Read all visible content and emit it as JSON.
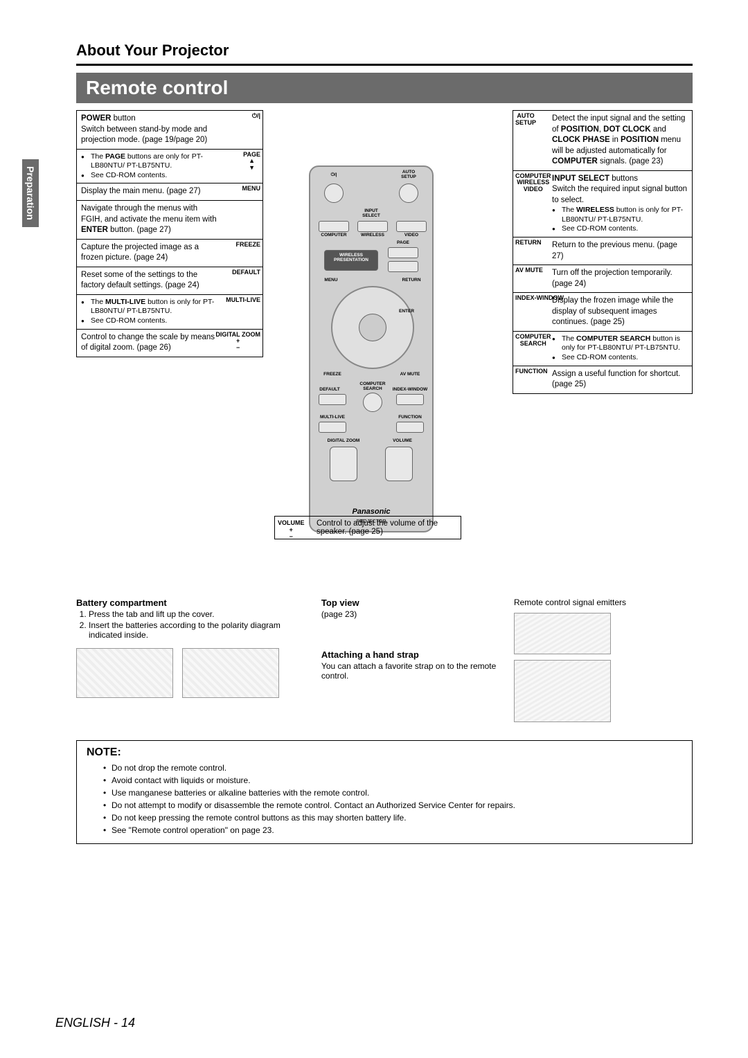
{
  "page": {
    "section_title": "About Your Projector",
    "title_bar": "Remote control",
    "side_tab": "Preparation",
    "footer_lang": "ENGLISH",
    "footer_page": "- 14"
  },
  "left_callouts": [
    {
      "label": "⏻/|",
      "body_html": "<b>POWER</b> button<br>Switch between stand-by mode and projection mode. (page 19/page 20)"
    },
    {
      "label": "PAGE\n▲\n▼",
      "bullets": [
        "The <b>PAGE</b> buttons are only for PT-LB80NTU/ PT-LB75NTU.",
        "See CD-ROM contents."
      ]
    },
    {
      "label": "MENU",
      "body_html": "Display the main menu. (page 27)"
    },
    {
      "label": "",
      "body_html": "Navigate through the menus with FGIH, and activate the menu item with <b>ENTER</b> button. (page 27)"
    },
    {
      "label": "FREEZE",
      "body_html": "Capture the projected image as a frozen picture. (page 24)"
    },
    {
      "label": "DEFAULT",
      "body_html": "Reset some of the settings to the factory default settings. (page 24)"
    },
    {
      "label": "MULTI-LIVE",
      "bullets": [
        "The <b>MULTI-LIVE</b> button is only for PT-LB80NTU/ PT-LB75NTU.",
        "See CD-ROM contents."
      ]
    },
    {
      "label": "DIGITAL ZOOM\n+\n−",
      "body_html": "Control to change the scale by means of digital zoom. (page 26)"
    }
  ],
  "right_callouts": [
    {
      "label": "AUTO\nSETUP",
      "body_html": "Detect the input signal and the setting of <b>POSITION</b>, <b>DOT CLOCK</b> and <b>CLOCK PHASE</b> in <b>POSITION</b> menu will be adjusted automatically for <b>COMPUTER</b> signals. (page 23)"
    },
    {
      "label": "COMPUTER\nWIRELESS\nVIDEO",
      "body_html": "<b>INPUT SELECT</b> buttons<br>Switch the required input signal button to select.",
      "bullets": [
        "The <b>WIRELESS</b> button is only for PT-LB80NTU/ PT-LB75NTU.",
        "See CD-ROM contents."
      ]
    },
    {
      "label": "RETURN",
      "body_html": "Return to the previous menu. (page 27)"
    },
    {
      "label": "AV MUTE",
      "body_html": "Turn off the projection temporarily. (page 24)"
    },
    {
      "label": "INDEX-WINDOW",
      "body_html": "Display the frozen image while the display of subsequent images continues. (page 25)"
    },
    {
      "label": "COMPUTER\nSEARCH",
      "bullets": [
        "The <b>COMPUTER SEARCH</b> button is only for PT-LB80NTU/ PT-LB75NTU.",
        "See CD-ROM contents."
      ]
    },
    {
      "label": "FUNCTION",
      "body_html": "Assign a useful function for shortcut. (page 25)"
    }
  ],
  "volume_callout": {
    "label": "VOLUME\n+\n−",
    "body": "Control to adjust the volume of the speaker. (page 25)"
  },
  "remote_labels": {
    "power": "⏻/|",
    "auto_setup": "AUTO\nSETUP",
    "input_select": "INPUT\nSELECT",
    "computer": "COMPUTER",
    "wireless": "WIRELESS",
    "video": "VIDEO",
    "wireless_pres": "WIRELESS\nPRESENTATION",
    "page": "PAGE",
    "menu": "MENU",
    "return": "RETURN",
    "enter": "ENTER",
    "freeze": "FREEZE",
    "av_mute": "AV MUTE",
    "default": "DEFAULT",
    "comp_search": "COMPUTER\nSEARCH",
    "index_window": "INDEX-WINDOW",
    "multilive": "MULTI-LIVE",
    "function": "FUNCTION",
    "digital_zoom": "DIGITAL ZOOM",
    "volume": "VOLUME",
    "brand": "Panasonic",
    "brand2": "PROJECTOR"
  },
  "battery": {
    "heading": "Battery compartment",
    "steps": [
      "Press the tab and lift up the cover.",
      "Insert the batteries according to the polarity diagram indicated inside."
    ]
  },
  "topview": {
    "heading": "Top view",
    "sub": "(page 23)",
    "emitters": "Remote control signal emitters"
  },
  "strap": {
    "heading": "Attaching a hand strap",
    "body": "You can attach a favorite strap on to the remote control."
  },
  "note": {
    "heading": "NOTE:",
    "items": [
      "Do not drop the remote control.",
      "Avoid contact with liquids or moisture.",
      "Use manganese batteries or alkaline batteries with the remote control.",
      "Do not attempt to modify or disassemble the remote control. Contact an Authorized Service Center for repairs.",
      "Do not keep pressing the remote control buttons as this may shorten battery life.",
      "See \"Remote control operation\" on page 23."
    ]
  },
  "colors": {
    "gray_bar": "#6b6b6b",
    "remote_body": "#d0d0d0"
  }
}
